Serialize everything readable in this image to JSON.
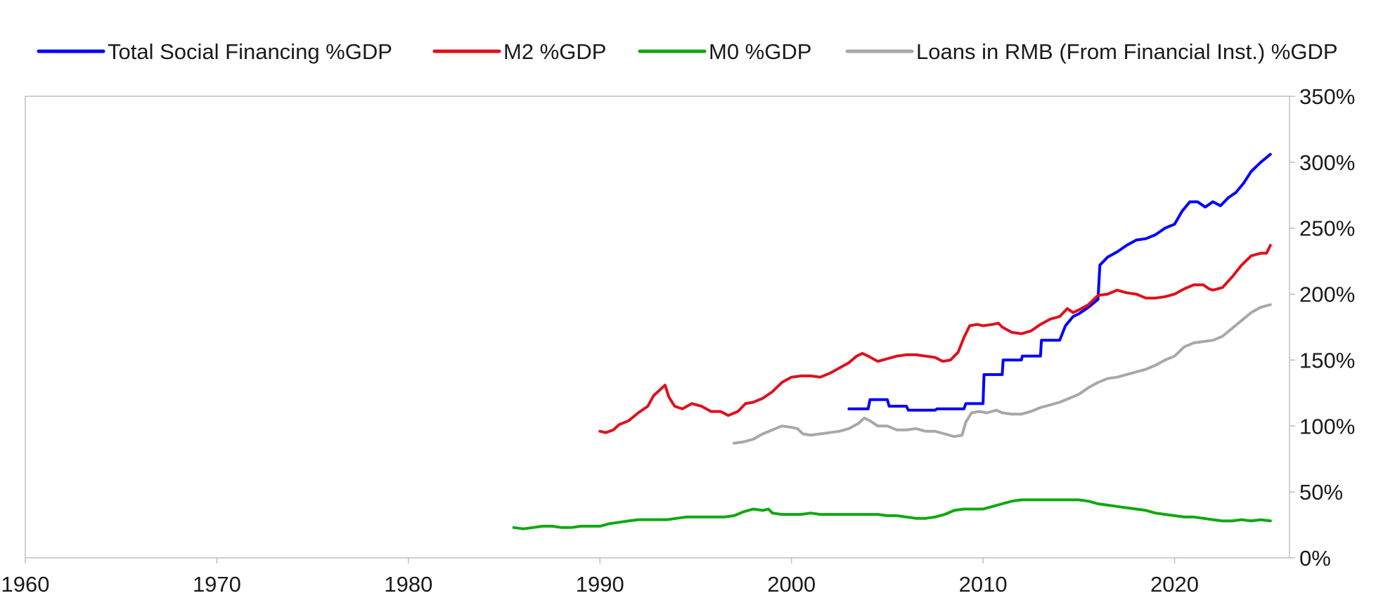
{
  "chart_data": {
    "type": "line",
    "title": "",
    "xlabel": "",
    "ylabel": "",
    "xlim": [
      1960,
      2026
    ],
    "ylim": [
      0,
      350
    ],
    "y_axis_side": "right",
    "grid": false,
    "legend_position": "top",
    "x_ticks": [
      "1960",
      "1970",
      "1980",
      "1990",
      "2000",
      "2010",
      "2020"
    ],
    "y_ticks": [
      "0%",
      "50%",
      "100%",
      "150%",
      "200%",
      "250%",
      "300%",
      "350%"
    ],
    "series": [
      {
        "name": "Total Social Financing %GDP",
        "color": "#0000ff",
        "points": [
          [
            2003.0,
            113
          ],
          [
            2004.0,
            113
          ],
          [
            2004.1,
            120
          ],
          [
            2005.0,
            120
          ],
          [
            2005.1,
            115
          ],
          [
            2006.0,
            115
          ],
          [
            2006.1,
            112
          ],
          [
            2007.5,
            112
          ],
          [
            2007.6,
            113
          ],
          [
            2009.0,
            113
          ],
          [
            2009.1,
            117
          ],
          [
            2010.0,
            117
          ],
          [
            2010.05,
            139
          ],
          [
            2011.0,
            139
          ],
          [
            2011.05,
            150
          ],
          [
            2012.0,
            150
          ],
          [
            2012.05,
            153
          ],
          [
            2013.0,
            153
          ],
          [
            2013.05,
            165
          ],
          [
            2014.0,
            165
          ],
          [
            2014.3,
            176
          ],
          [
            2014.7,
            183
          ],
          [
            2015.0,
            185
          ],
          [
            2015.5,
            190
          ],
          [
            2016.0,
            196
          ],
          [
            2016.1,
            222
          ],
          [
            2016.5,
            228
          ],
          [
            2017.0,
            232
          ],
          [
            2017.5,
            237
          ],
          [
            2018.0,
            241
          ],
          [
            2018.5,
            242
          ],
          [
            2019.0,
            245
          ],
          [
            2019.5,
            250
          ],
          [
            2020.0,
            253
          ],
          [
            2020.4,
            263
          ],
          [
            2020.8,
            270
          ],
          [
            2021.2,
            270
          ],
          [
            2021.6,
            266
          ],
          [
            2022.0,
            270
          ],
          [
            2022.4,
            267
          ],
          [
            2022.8,
            273
          ],
          [
            2023.2,
            277
          ],
          [
            2023.6,
            284
          ],
          [
            2024.0,
            293
          ],
          [
            2024.5,
            300
          ],
          [
            2025.0,
            306
          ]
        ]
      },
      {
        "name": "M2 %GDP",
        "color": "#e0101c",
        "points": [
          [
            1990.0,
            96
          ],
          [
            1990.3,
            95
          ],
          [
            1990.7,
            97
          ],
          [
            1991.0,
            101
          ],
          [
            1991.5,
            104
          ],
          [
            1992.0,
            110
          ],
          [
            1992.5,
            115
          ],
          [
            1992.8,
            123
          ],
          [
            1993.1,
            127
          ],
          [
            1993.4,
            131
          ],
          [
            1993.6,
            122
          ],
          [
            1993.9,
            115
          ],
          [
            1994.3,
            113
          ],
          [
            1994.8,
            117
          ],
          [
            1995.3,
            115
          ],
          [
            1995.8,
            111
          ],
          [
            1996.3,
            111
          ],
          [
            1996.7,
            108
          ],
          [
            1997.2,
            111
          ],
          [
            1997.6,
            117
          ],
          [
            1998.0,
            118
          ],
          [
            1998.5,
            121
          ],
          [
            1999.0,
            126
          ],
          [
            1999.5,
            133
          ],
          [
            2000.0,
            137
          ],
          [
            2000.5,
            138
          ],
          [
            2001.0,
            138
          ],
          [
            2001.5,
            137
          ],
          [
            2002.0,
            140
          ],
          [
            2002.5,
            144
          ],
          [
            2003.0,
            148
          ],
          [
            2003.4,
            153
          ],
          [
            2003.7,
            155
          ],
          [
            2004.0,
            153
          ],
          [
            2004.5,
            149
          ],
          [
            2005.0,
            151
          ],
          [
            2005.5,
            153
          ],
          [
            2006.0,
            154
          ],
          [
            2006.5,
            154
          ],
          [
            2007.0,
            153
          ],
          [
            2007.5,
            152
          ],
          [
            2007.9,
            149
          ],
          [
            2008.3,
            150
          ],
          [
            2008.7,
            156
          ],
          [
            2009.0,
            167
          ],
          [
            2009.3,
            176
          ],
          [
            2009.7,
            177
          ],
          [
            2010.0,
            176
          ],
          [
            2010.5,
            177
          ],
          [
            2010.8,
            178
          ],
          [
            2011.0,
            175
          ],
          [
            2011.5,
            171
          ],
          [
            2012.0,
            170
          ],
          [
            2012.5,
            172
          ],
          [
            2013.0,
            177
          ],
          [
            2013.5,
            181
          ],
          [
            2014.0,
            183
          ],
          [
            2014.4,
            189
          ],
          [
            2014.7,
            186
          ],
          [
            2015.0,
            188
          ],
          [
            2015.5,
            192
          ],
          [
            2016.0,
            199
          ],
          [
            2016.5,
            200
          ],
          [
            2017.0,
            203
          ],
          [
            2017.5,
            201
          ],
          [
            2018.0,
            200
          ],
          [
            2018.5,
            197
          ],
          [
            2019.0,
            197
          ],
          [
            2019.5,
            198
          ],
          [
            2020.0,
            200
          ],
          [
            2020.5,
            204
          ],
          [
            2021.0,
            207
          ],
          [
            2021.5,
            207
          ],
          [
            2021.8,
            204
          ],
          [
            2022.0,
            203
          ],
          [
            2022.5,
            205
          ],
          [
            2023.0,
            213
          ],
          [
            2023.5,
            222
          ],
          [
            2024.0,
            229
          ],
          [
            2024.5,
            231
          ],
          [
            2024.8,
            231
          ],
          [
            2025.0,
            237
          ]
        ]
      },
      {
        "name": "M0 %GDP",
        "color": "#10a810",
        "points": [
          [
            1985.5,
            23
          ],
          [
            1986.0,
            22
          ],
          [
            1986.5,
            23
          ],
          [
            1987.0,
            24
          ],
          [
            1987.5,
            24
          ],
          [
            1988.0,
            23
          ],
          [
            1988.5,
            23
          ],
          [
            1989.0,
            24
          ],
          [
            1989.5,
            24
          ],
          [
            1990.0,
            24
          ],
          [
            1990.5,
            26
          ],
          [
            1991.0,
            27
          ],
          [
            1991.5,
            28
          ],
          [
            1992.0,
            29
          ],
          [
            1992.5,
            29
          ],
          [
            1993.0,
            29
          ],
          [
            1993.5,
            29
          ],
          [
            1994.0,
            30
          ],
          [
            1994.5,
            31
          ],
          [
            1995.0,
            31
          ],
          [
            1995.5,
            31
          ],
          [
            1996.0,
            31
          ],
          [
            1996.5,
            31
          ],
          [
            1997.0,
            32
          ],
          [
            1997.5,
            35
          ],
          [
            1998.0,
            37
          ],
          [
            1998.5,
            36
          ],
          [
            1998.8,
            37
          ],
          [
            1999.0,
            34
          ],
          [
            1999.5,
            33
          ],
          [
            2000.0,
            33
          ],
          [
            2000.5,
            33
          ],
          [
            2001.0,
            34
          ],
          [
            2001.5,
            33
          ],
          [
            2002.0,
            33
          ],
          [
            2002.5,
            33
          ],
          [
            2003.0,
            33
          ],
          [
            2003.5,
            33
          ],
          [
            2004.0,
            33
          ],
          [
            2004.5,
            33
          ],
          [
            2005.0,
            32
          ],
          [
            2005.5,
            32
          ],
          [
            2006.0,
            31
          ],
          [
            2006.5,
            30
          ],
          [
            2007.0,
            30
          ],
          [
            2007.5,
            31
          ],
          [
            2008.0,
            33
          ],
          [
            2008.5,
            36
          ],
          [
            2009.0,
            37
          ],
          [
            2009.5,
            37
          ],
          [
            2010.0,
            37
          ],
          [
            2010.5,
            39
          ],
          [
            2011.0,
            41
          ],
          [
            2011.5,
            43
          ],
          [
            2012.0,
            44
          ],
          [
            2012.5,
            44
          ],
          [
            2013.0,
            44
          ],
          [
            2013.5,
            44
          ],
          [
            2014.0,
            44
          ],
          [
            2014.5,
            44
          ],
          [
            2015.0,
            44
          ],
          [
            2015.5,
            43
          ],
          [
            2016.0,
            41
          ],
          [
            2016.5,
            40
          ],
          [
            2017.0,
            39
          ],
          [
            2017.5,
            38
          ],
          [
            2018.0,
            37
          ],
          [
            2018.5,
            36
          ],
          [
            2019.0,
            34
          ],
          [
            2019.5,
            33
          ],
          [
            2020.0,
            32
          ],
          [
            2020.5,
            31
          ],
          [
            2021.0,
            31
          ],
          [
            2021.5,
            30
          ],
          [
            2022.0,
            29
          ],
          [
            2022.5,
            28
          ],
          [
            2023.0,
            28
          ],
          [
            2023.5,
            29
          ],
          [
            2024.0,
            28
          ],
          [
            2024.5,
            29
          ],
          [
            2025.0,
            28
          ]
        ]
      },
      {
        "name": "Loans in RMB (From Financial Inst.) %GDP",
        "color": "#a8a8a8",
        "points": [
          [
            1997.0,
            87
          ],
          [
            1997.5,
            88
          ],
          [
            1998.0,
            90
          ],
          [
            1998.5,
            94
          ],
          [
            1999.0,
            97
          ],
          [
            1999.5,
            100
          ],
          [
            2000.0,
            99
          ],
          [
            2000.3,
            98
          ],
          [
            2000.6,
            94
          ],
          [
            2001.0,
            93
          ],
          [
            2001.5,
            94
          ],
          [
            2002.0,
            95
          ],
          [
            2002.5,
            96
          ],
          [
            2003.0,
            98
          ],
          [
            2003.5,
            102
          ],
          [
            2003.8,
            106
          ],
          [
            2004.1,
            104
          ],
          [
            2004.5,
            100
          ],
          [
            2005.0,
            100
          ],
          [
            2005.5,
            97
          ],
          [
            2006.0,
            97
          ],
          [
            2006.5,
            98
          ],
          [
            2007.0,
            96
          ],
          [
            2007.5,
            96
          ],
          [
            2008.0,
            94
          ],
          [
            2008.5,
            92
          ],
          [
            2008.9,
            93
          ],
          [
            2009.1,
            103
          ],
          [
            2009.4,
            110
          ],
          [
            2009.8,
            111
          ],
          [
            2010.2,
            110
          ],
          [
            2010.7,
            112
          ],
          [
            2011.0,
            110
          ],
          [
            2011.5,
            109
          ],
          [
            2012.0,
            109
          ],
          [
            2012.5,
            111
          ],
          [
            2013.0,
            114
          ],
          [
            2013.5,
            116
          ],
          [
            2014.0,
            118
          ],
          [
            2014.5,
            121
          ],
          [
            2015.0,
            124
          ],
          [
            2015.5,
            129
          ],
          [
            2016.0,
            133
          ],
          [
            2016.5,
            136
          ],
          [
            2017.0,
            137
          ],
          [
            2017.5,
            139
          ],
          [
            2018.0,
            141
          ],
          [
            2018.5,
            143
          ],
          [
            2019.0,
            146
          ],
          [
            2019.5,
            150
          ],
          [
            2020.0,
            153
          ],
          [
            2020.5,
            160
          ],
          [
            2021.0,
            163
          ],
          [
            2021.5,
            164
          ],
          [
            2022.0,
            165
          ],
          [
            2022.5,
            168
          ],
          [
            2023.0,
            174
          ],
          [
            2023.5,
            180
          ],
          [
            2024.0,
            186
          ],
          [
            2024.5,
            190
          ],
          [
            2025.0,
            192
          ]
        ]
      }
    ]
  }
}
